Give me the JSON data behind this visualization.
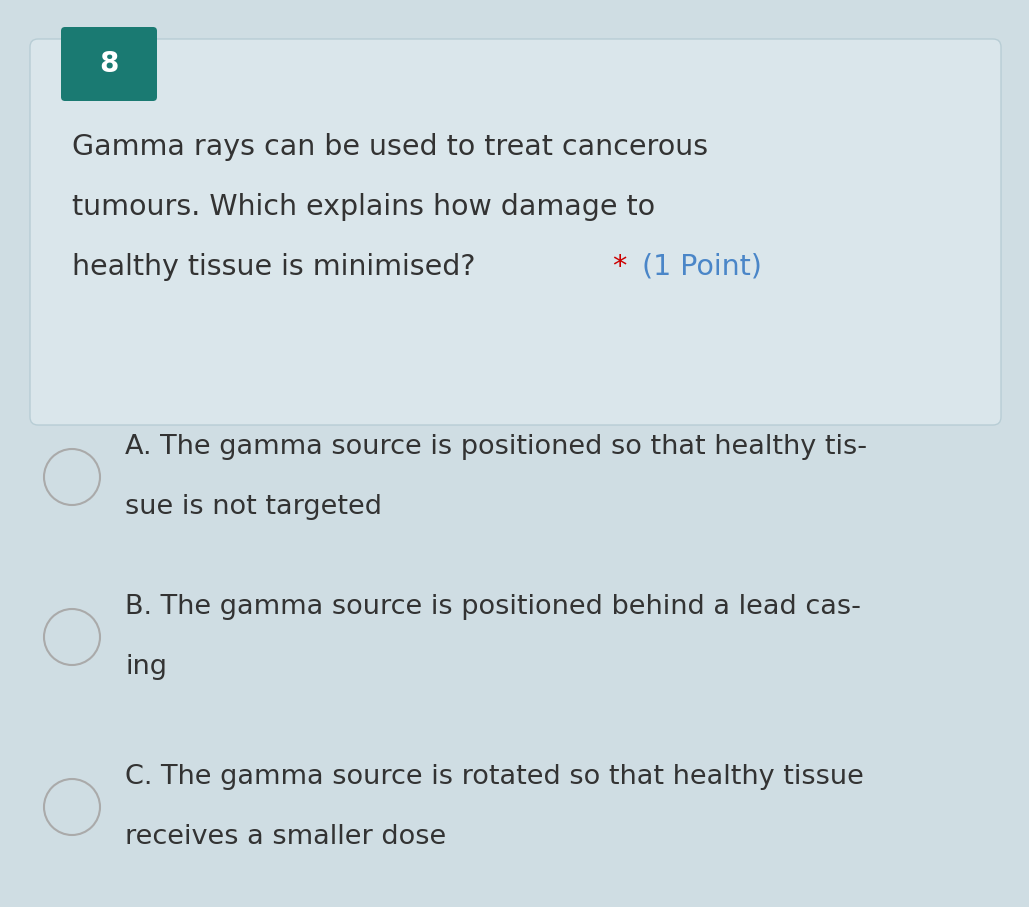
{
  "background_color": "#cfdde3",
  "question_box_color": "#dae6eb",
  "question_box_border_color": "#b8cdd5",
  "number_box_color": "#1a7a72",
  "number_box_text": "8",
  "number_box_text_color": "#ffffff",
  "question_text_line1": "Gamma rays can be used to treat cancerous",
  "question_text_line2": "tumours. Which explains how damage to",
  "question_text_line3": "healthy tissue is minimised?",
  "question_asterisk": "*",
  "question_points": "(1 Point)",
  "question_text_color": "#333333",
  "asterisk_color": "#cc0000",
  "points_color": "#4a86c8",
  "option_A_line1": "A. The gamma source is positioned so that healthy tis-",
  "option_A_line2": "sue is not targeted",
  "option_B_line1": "B. The gamma source is positioned behind a lead cas-",
  "option_B_line2": "ing",
  "option_C_line1": "C. The gamma source is rotated so that healthy tissue",
  "option_C_line2": "receives a smaller dose",
  "option_text_color": "#333333",
  "circle_edge_color": "#aaaaaa",
  "circle_face_color": "#cfdde3",
  "font_size_question": 20.5,
  "font_size_number": 20,
  "font_size_options": 19.5,
  "fig_width": 10.29,
  "fig_height": 9.07,
  "dpi": 100
}
